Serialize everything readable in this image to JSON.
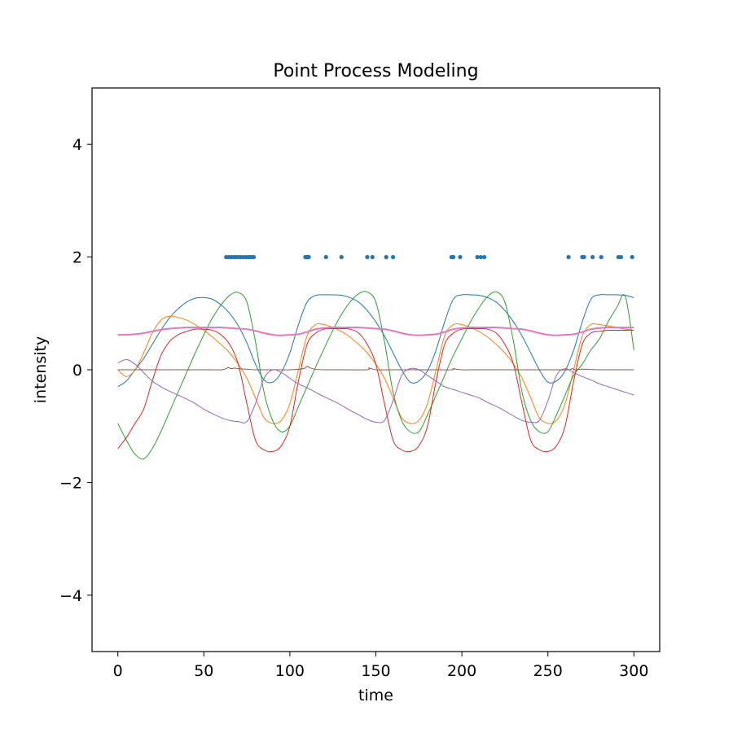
{
  "chart_data": {
    "type": "line",
    "title": "Point Process Modeling",
    "xlabel": "time",
    "ylabel": "intensity",
    "xlim": [
      -15,
      315
    ],
    "ylim": [
      -5,
      5
    ],
    "xticks": [
      0,
      50,
      100,
      150,
      200,
      250,
      300
    ],
    "xtick_labels": [
      "0",
      "50",
      "100",
      "150",
      "200",
      "250",
      "300"
    ],
    "yticks": [
      -4,
      -2,
      0,
      2,
      4
    ],
    "ytick_labels": [
      "−4",
      "−2",
      "0",
      "2",
      "4"
    ],
    "grid": false,
    "legend": "none",
    "events": {
      "y": 2,
      "color": "#1f77b4",
      "x": [
        63,
        64.5,
        66,
        67.5,
        68.5,
        70,
        71.5,
        73,
        74.5,
        76,
        77,
        78,
        79,
        109,
        109.5,
        110,
        110.5,
        111,
        121,
        130,
        145,
        148,
        156,
        160,
        194,
        195,
        199,
        209,
        211,
        213,
        262,
        270,
        271,
        276,
        281,
        291,
        292.5,
        299
      ]
    },
    "series": [
      {
        "color": "#1f77b4",
        "x": [
          0,
          5,
          10,
          15,
          20,
          25,
          30,
          35,
          40,
          45,
          50,
          55,
          60,
          65,
          70,
          75,
          80,
          85,
          90,
          95,
          100,
          105,
          110,
          115,
          120,
          125,
          130,
          135,
          140,
          145,
          150,
          155,
          160,
          165,
          170,
          175,
          180,
          185,
          190,
          195,
          200,
          205,
          210,
          215,
          220,
          225,
          230,
          235,
          240,
          245,
          250,
          255,
          260,
          265,
          270,
          275,
          280,
          285,
          290,
          295,
          300
        ],
        "y": [
          -0.3,
          -0.2,
          0.0,
          0.2,
          0.45,
          0.7,
          0.92,
          1.08,
          1.2,
          1.27,
          1.28,
          1.25,
          1.15,
          1.0,
          0.78,
          0.48,
          0.1,
          -0.18,
          -0.22,
          -0.05,
          0.3,
          0.8,
          1.2,
          1.32,
          1.33,
          1.33,
          1.32,
          1.28,
          1.2,
          1.05,
          0.85,
          0.6,
          0.3,
          0.0,
          -0.22,
          -0.2,
          -0.02,
          0.35,
          0.85,
          1.25,
          1.33,
          1.33,
          1.32,
          1.28,
          1.2,
          1.05,
          0.85,
          0.6,
          0.3,
          0.0,
          -0.22,
          -0.2,
          -0.02,
          0.35,
          0.85,
          1.25,
          1.33,
          1.33,
          1.33,
          1.32,
          1.28
        ]
      },
      {
        "color": "#ff7f0e",
        "x": [
          0,
          5,
          10,
          15,
          20,
          25,
          30,
          35,
          40,
          45,
          50,
          55,
          60,
          65,
          70,
          75,
          80,
          85,
          90,
          95,
          100,
          105,
          110,
          115,
          120,
          125,
          130,
          135,
          140,
          145,
          150,
          155,
          160,
          165,
          170,
          175,
          180,
          185,
          190,
          195,
          200,
          205,
          210,
          215,
          220,
          225,
          230,
          235,
          240,
          245,
          250,
          255,
          260,
          265,
          270,
          275,
          280,
          285,
          290,
          295,
          300
        ],
        "y": [
          0.0,
          -0.12,
          0.0,
          0.3,
          0.65,
          0.88,
          0.95,
          0.93,
          0.88,
          0.8,
          0.7,
          0.58,
          0.45,
          0.3,
          0.1,
          -0.15,
          -0.5,
          -0.85,
          -0.95,
          -0.9,
          -0.6,
          0.0,
          0.6,
          0.8,
          0.8,
          0.75,
          0.68,
          0.58,
          0.45,
          0.3,
          0.1,
          -0.15,
          -0.5,
          -0.85,
          -0.95,
          -0.9,
          -0.6,
          0.0,
          0.6,
          0.8,
          0.8,
          0.75,
          0.68,
          0.58,
          0.45,
          0.3,
          0.1,
          -0.15,
          -0.5,
          -0.85,
          -0.95,
          -0.9,
          -0.6,
          0.0,
          0.6,
          0.8,
          0.8,
          0.78,
          0.75,
          0.72,
          0.7
        ]
      },
      {
        "color": "#2ca02c",
        "x": [
          0,
          5,
          10,
          15,
          20,
          25,
          30,
          35,
          40,
          45,
          50,
          55,
          60,
          65,
          70,
          75,
          80,
          85,
          90,
          95,
          100,
          105,
          110,
          115,
          120,
          125,
          130,
          135,
          140,
          145,
          150,
          155,
          160,
          165,
          170,
          175,
          180,
          185,
          190,
          195,
          200,
          205,
          210,
          215,
          220,
          225,
          230,
          235,
          240,
          245,
          250,
          255,
          260,
          265,
          270,
          275,
          280,
          285,
          290,
          295,
          300
        ],
        "y": [
          -0.95,
          -1.25,
          -1.5,
          -1.58,
          -1.4,
          -1.1,
          -0.75,
          -0.4,
          -0.05,
          0.3,
          0.62,
          0.92,
          1.15,
          1.32,
          1.37,
          1.2,
          0.5,
          -0.4,
          -0.9,
          -1.1,
          -1.0,
          -0.65,
          -0.3,
          0.05,
          0.38,
          0.7,
          0.98,
          1.2,
          1.35,
          1.38,
          1.2,
          0.5,
          -0.4,
          -0.9,
          -1.1,
          -1.1,
          -0.8,
          -0.45,
          -0.1,
          0.25,
          0.55,
          0.85,
          1.1,
          1.3,
          1.38,
          1.2,
          0.5,
          -0.4,
          -0.9,
          -1.1,
          -1.1,
          -0.8,
          -0.45,
          -0.1,
          0.1,
          0.35,
          0.55,
          0.85,
          1.1,
          1.3,
          0.35
        ]
      },
      {
        "color": "#d62728",
        "x": [
          0,
          5,
          10,
          15,
          20,
          25,
          30,
          35,
          40,
          45,
          50,
          55,
          60,
          65,
          70,
          75,
          80,
          85,
          90,
          95,
          100,
          105,
          110,
          115,
          120,
          125,
          130,
          135,
          140,
          145,
          150,
          155,
          160,
          165,
          170,
          175,
          180,
          185,
          190,
          195,
          200,
          205,
          210,
          215,
          220,
          225,
          230,
          235,
          240,
          245,
          250,
          255,
          260,
          265,
          270,
          275,
          280,
          285,
          290,
          295,
          300
        ],
        "y": [
          -1.4,
          -1.2,
          -0.95,
          -0.7,
          -0.2,
          0.25,
          0.5,
          0.62,
          0.68,
          0.72,
          0.72,
          0.7,
          0.62,
          0.45,
          0.1,
          -0.6,
          -1.25,
          -1.42,
          -1.45,
          -1.35,
          -1.0,
          -0.2,
          0.45,
          0.65,
          0.72,
          0.73,
          0.73,
          0.72,
          0.65,
          0.45,
          0.1,
          -0.6,
          -1.25,
          -1.42,
          -1.45,
          -1.35,
          -1.0,
          -0.2,
          0.45,
          0.65,
          0.72,
          0.73,
          0.73,
          0.72,
          0.65,
          0.45,
          0.1,
          -0.6,
          -1.25,
          -1.42,
          -1.45,
          -1.35,
          -1.0,
          -0.2,
          0.45,
          0.65,
          0.68,
          0.7,
          0.7,
          0.7,
          0.7
        ]
      },
      {
        "color": "#9467bd",
        "x": [
          0,
          5,
          10,
          15,
          20,
          25,
          30,
          35,
          40,
          45,
          50,
          55,
          60,
          65,
          70,
          75,
          80,
          85,
          90,
          95,
          100,
          105,
          110,
          115,
          120,
          125,
          130,
          135,
          140,
          145,
          150,
          155,
          160,
          165,
          170,
          175,
          180,
          185,
          190,
          195,
          200,
          205,
          210,
          215,
          220,
          225,
          230,
          235,
          240,
          245,
          250,
          255,
          260,
          265,
          270,
          275,
          280,
          285,
          290,
          295,
          300
        ],
        "y": [
          0.12,
          0.18,
          0.1,
          -0.05,
          -0.2,
          -0.3,
          -0.38,
          -0.45,
          -0.52,
          -0.6,
          -0.7,
          -0.78,
          -0.85,
          -0.9,
          -0.92,
          -0.92,
          -0.6,
          -0.15,
          0.0,
          -0.05,
          -0.15,
          -0.25,
          -0.32,
          -0.4,
          -0.48,
          -0.55,
          -0.63,
          -0.72,
          -0.8,
          -0.88,
          -0.93,
          -0.9,
          -0.55,
          -0.1,
          0.02,
          0.0,
          -0.1,
          -0.2,
          -0.3,
          -0.35,
          -0.4,
          -0.45,
          -0.5,
          -0.58,
          -0.65,
          -0.73,
          -0.82,
          -0.9,
          -0.93,
          -0.9,
          -0.55,
          -0.1,
          0.02,
          -0.05,
          -0.12,
          -0.18,
          -0.25,
          -0.3,
          -0.35,
          -0.4,
          -0.45
        ]
      },
      {
        "color": "#8c564b",
        "x": [
          0,
          10,
          20,
          30,
          40,
          50,
          60,
          63,
          64,
          66,
          68,
          70,
          75,
          80,
          90,
          100,
          108,
          110,
          112,
          115,
          120,
          130,
          145,
          146,
          150,
          160,
          170,
          180,
          194,
          195,
          200,
          210,
          220,
          230,
          240,
          250,
          262,
          264,
          266,
          270,
          280,
          290,
          300
        ],
        "y": [
          0.0,
          0.0,
          0.0,
          0.0,
          0.0,
          0.0,
          0.0,
          0.02,
          0.04,
          0.02,
          0.03,
          0.02,
          0.01,
          0.0,
          0.0,
          0.0,
          0.02,
          0.06,
          0.03,
          0.01,
          0.0,
          0.0,
          0.0,
          0.03,
          0.0,
          0.0,
          0.0,
          0.0,
          0.0,
          0.02,
          0.0,
          0.0,
          0.0,
          0.0,
          0.0,
          0.0,
          0.0,
          0.02,
          0.0,
          0.01,
          0.0,
          0.0,
          0.0
        ]
      },
      {
        "color": "#e377c2",
        "x": [
          0,
          5,
          10,
          15,
          20,
          25,
          30,
          35,
          40,
          45,
          50,
          55,
          60,
          65,
          70,
          75,
          80,
          85,
          90,
          95,
          100,
          105,
          110,
          115,
          120,
          125,
          130,
          135,
          140,
          145,
          150,
          155,
          160,
          165,
          170,
          175,
          180,
          185,
          190,
          195,
          200,
          205,
          210,
          215,
          220,
          225,
          230,
          235,
          240,
          245,
          250,
          255,
          260,
          265,
          270,
          275,
          280,
          285,
          290,
          295,
          300
        ],
        "y": [
          0.62,
          0.62,
          0.63,
          0.65,
          0.68,
          0.71,
          0.73,
          0.74,
          0.75,
          0.75,
          0.75,
          0.75,
          0.75,
          0.74,
          0.73,
          0.72,
          0.69,
          0.65,
          0.62,
          0.61,
          0.62,
          0.63,
          0.67,
          0.72,
          0.74,
          0.75,
          0.75,
          0.75,
          0.75,
          0.74,
          0.73,
          0.72,
          0.69,
          0.65,
          0.62,
          0.61,
          0.62,
          0.63,
          0.67,
          0.72,
          0.74,
          0.75,
          0.75,
          0.75,
          0.75,
          0.74,
          0.73,
          0.72,
          0.69,
          0.65,
          0.62,
          0.61,
          0.62,
          0.63,
          0.67,
          0.72,
          0.74,
          0.75,
          0.75,
          0.75,
          0.75
        ]
      }
    ]
  }
}
